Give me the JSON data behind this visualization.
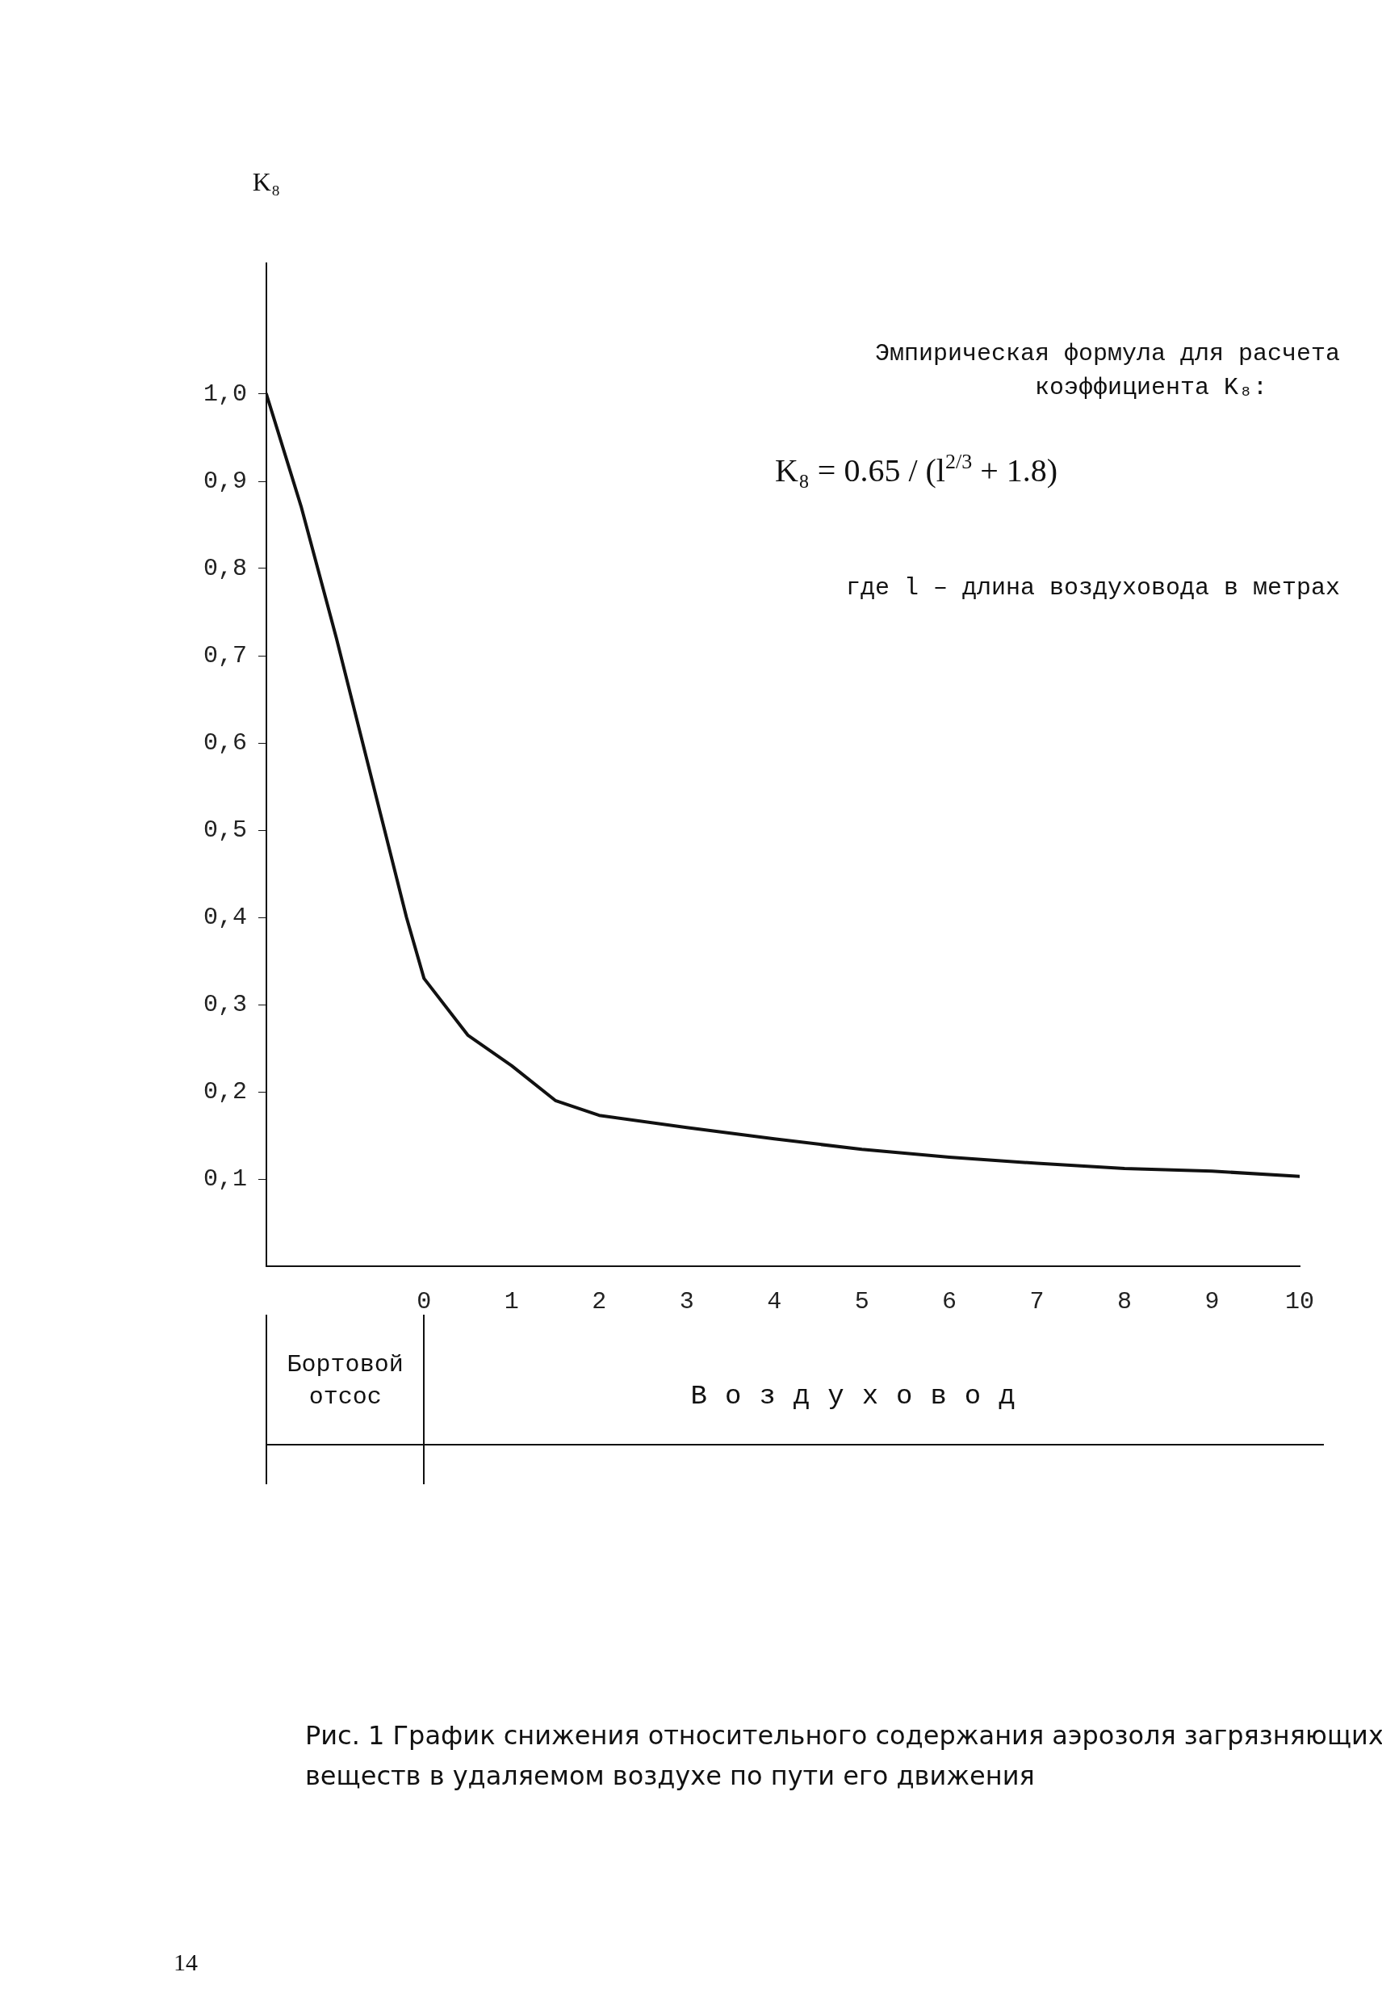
{
  "chart_data": {
    "type": "line",
    "ylabel": "K₈",
    "x": [
      -1.8,
      -1.4,
      -1.0,
      -0.5,
      -0.2,
      0,
      0.5,
      1,
      1.5,
      2,
      3,
      4,
      5,
      6,
      7,
      8,
      9,
      10
    ],
    "series": [
      {
        "color": "#111111",
        "values": [
          1.0,
          0.87,
          0.72,
          0.52,
          0.4,
          0.33,
          0.265,
          0.23,
          0.19,
          0.173,
          0.159,
          0.146,
          0.134,
          0.125,
          0.118,
          0.112,
          0.109,
          0.103
        ]
      }
    ],
    "xlim": [
      -1.8,
      10
    ],
    "xticks": [
      0,
      1,
      2,
      3,
      4,
      5,
      6,
      7,
      8,
      9,
      10
    ],
    "ylim": [
      0,
      1.15
    ],
    "yticks": [
      {
        "value": 0.1,
        "label": "0,1"
      },
      {
        "value": 0.2,
        "label": "0,2"
      },
      {
        "value": 0.3,
        "label": "0,3"
      },
      {
        "value": 0.4,
        "label": "0,4"
      },
      {
        "value": 0.5,
        "label": "0,5"
      },
      {
        "value": 0.6,
        "label": "0,6"
      },
      {
        "value": 0.7,
        "label": "0,7"
      },
      {
        "value": 0.8,
        "label": "0,8"
      },
      {
        "value": 0.9,
        "label": "0,9"
      },
      {
        "value": 1.0,
        "label": "1,0"
      }
    ],
    "marker": "none",
    "line_style": "solid",
    "legend": false,
    "annotations": [
      "Эмпирическая формула для расчета",
      "коэффициента K₈:",
      "K₈ = 0.65 / (l$^{2/3}$ + 1.8)",
      "где l – длина воздуховода в метрах",
      "Бортовой отсос",
      "Воздуховод",
      "Рис. 1 График снижения относительного содержания аэрозоля загрязняющих",
      "веществ в удаляемом воздухе по пути его движения",
      "14"
    ]
  }
}
